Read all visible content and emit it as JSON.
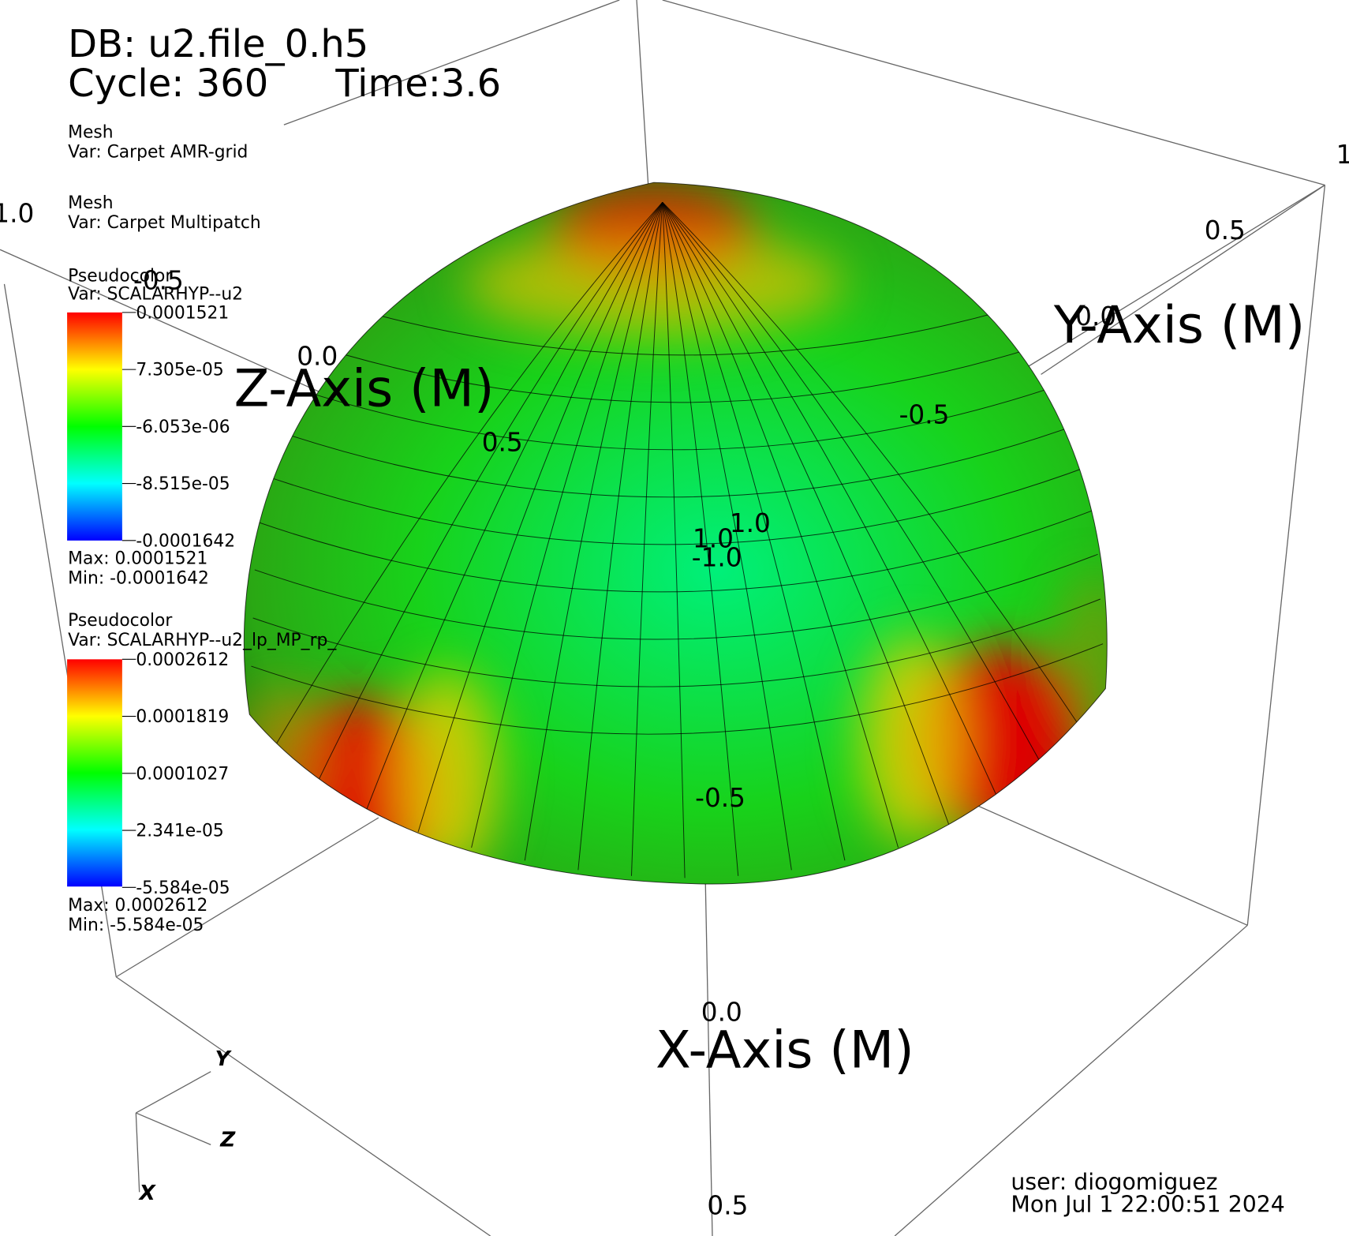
{
  "header": {
    "db": "DB: u2.file_0.h5",
    "cycle": "Cycle: 360",
    "time": "Time:3.6"
  },
  "legends": [
    {
      "plot": "Mesh",
      "var": "Var: Carpet AMR-grid"
    },
    {
      "plot": "Mesh",
      "var": "Var: Carpet Multipatch"
    },
    {
      "plot": "Pseudocolor",
      "var": "Var: SCALARHYP--u2",
      "ticks": [
        "0.0001521",
        "7.305e-05",
        "-6.053e-06",
        "-8.515e-05",
        "-0.0001642"
      ],
      "max": "Max:  0.0001521",
      "min": "Min: -0.0001642"
    },
    {
      "plot": "Pseudocolor",
      "var": "Var: SCALARHYP--u2_lp_MP_rp_",
      "ticks": [
        "0.0002612",
        "0.0001819",
        "0.0001027",
        "2.341e-05",
        "-5.584e-05"
      ],
      "max": "Max:  0.0002612",
      "min": "Min: -5.584e-05"
    }
  ],
  "axes": {
    "x_title": "X-Axis (M)",
    "y_title": "Y-Axis (M)",
    "z_title": "Z-Axis (M)",
    "tick_labels": [
      "1.0",
      "-0.5",
      "0.0",
      "0.5",
      "1",
      "0.5",
      "0.0",
      "-0.5",
      "1.0",
      "1.0",
      "-1.0",
      "-0.5",
      "0.0",
      "0.5"
    ]
  },
  "triad": {
    "x": "X",
    "y": "Y",
    "z": "Z"
  },
  "footer": {
    "user": "user: diogomiguez",
    "date": "Mon Jul  1 22:00:51 2024"
  }
}
